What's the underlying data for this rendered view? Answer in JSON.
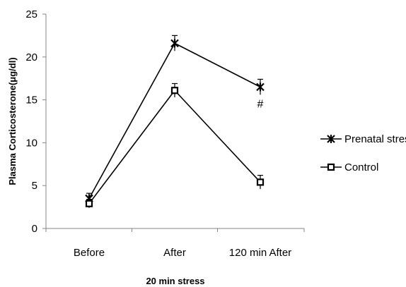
{
  "chart_data": {
    "type": "line",
    "categories": [
      "Before",
      "After",
      "120 min After"
    ],
    "series": [
      {
        "name": "Prenatal stress",
        "marker": "star",
        "values": [
          3.5,
          21.6,
          16.5
        ],
        "error": [
          0.6,
          0.9,
          0.9
        ]
      },
      {
        "name": "Control",
        "marker": "square",
        "values": [
          2.9,
          16.1,
          5.4
        ],
        "error": [
          0.5,
          0.8,
          0.8
        ]
      }
    ],
    "xlabel": "20 min stress",
    "ylabel": "Plasma Corticosterone(μg/dl)",
    "ylim": [
      0,
      25
    ],
    "yticks": [
      0,
      5,
      10,
      15,
      20,
      25
    ],
    "annotations": [
      {
        "text": "#",
        "category": "120 min After",
        "y": 14.6
      }
    ],
    "grid": false,
    "legend_position": "right",
    "colors": {
      "line": "#000000",
      "background": "#ffffff"
    }
  }
}
